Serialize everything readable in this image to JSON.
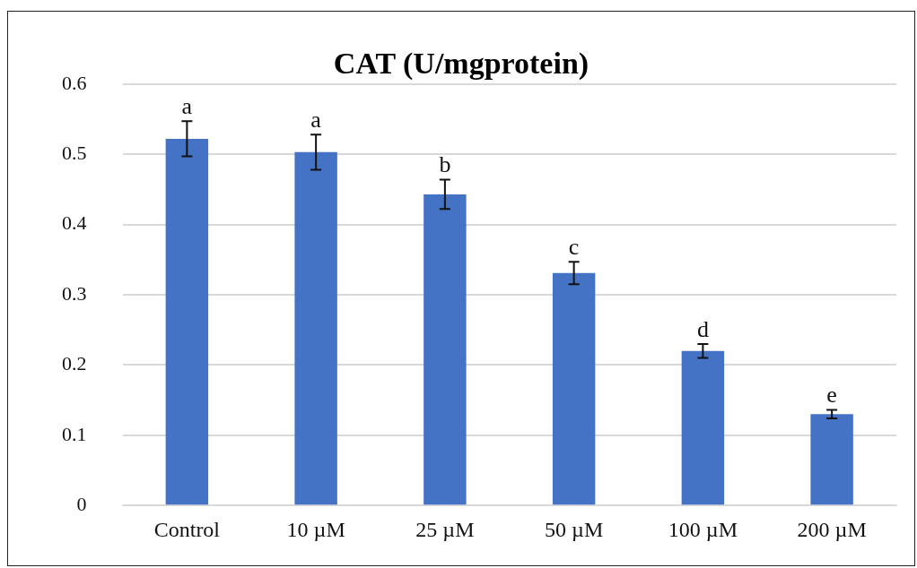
{
  "chart_data": {
    "type": "bar",
    "title": "CAT (U/mgprotein)",
    "categories": [
      "Control",
      "10 µM",
      "25 µM",
      "50 µM",
      "100 µM",
      "200 µM"
    ],
    "values": [
      0.522,
      0.503,
      0.443,
      0.331,
      0.22,
      0.13
    ],
    "errors": [
      0.025,
      0.025,
      0.021,
      0.016,
      0.01,
      0.006
    ],
    "color": "#4472c4",
    "ylim": [
      0,
      0.6
    ],
    "yticks": [
      0,
      0.1,
      0.2,
      0.3,
      0.4,
      0.5,
      0.6
    ],
    "grid": "y",
    "legend": false,
    "annotations": [
      {
        "text": "a",
        "x": "Control",
        "y": 0.547
      },
      {
        "text": "a",
        "x": "10 µM",
        "y": 0.528
      },
      {
        "text": "b",
        "x": "25 µM",
        "y": 0.464
      },
      {
        "text": "c",
        "x": "50 µM",
        "y": 0.347
      },
      {
        "text": "d",
        "x": "100 µM",
        "y": 0.23
      },
      {
        "text": "e",
        "x": "200 µM",
        "y": 0.136
      }
    ]
  }
}
